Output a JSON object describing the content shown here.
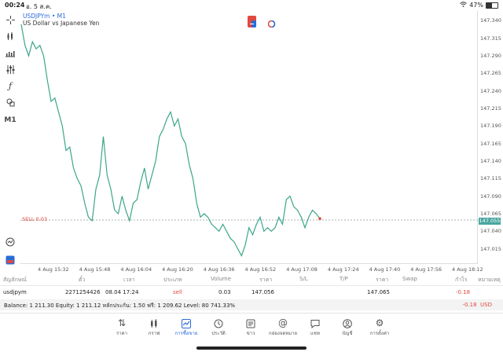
{
  "status_bar": {
    "time": "00:24",
    "date": "อ. 5 ส.ค.",
    "battery": "47%",
    "battery_level": 0.47,
    "wifi_icon": "wifi-icon"
  },
  "left_toolbar": {
    "items": [
      {
        "name": "crosshair-icon"
      },
      {
        "name": "chart-type-icon"
      },
      {
        "name": "indicators-icon"
      },
      {
        "name": "settings-sliders-icon"
      },
      {
        "name": "function-icon"
      },
      {
        "name": "objects-icon"
      }
    ],
    "timeframe": "M1"
  },
  "chart": {
    "symbol": "USDJPYm",
    "symbol_suffix": " • M1",
    "description": "US Dollar vs Japanese Yen",
    "sell_label": "SELL 0.03",
    "current_price": "147.055",
    "colors": {
      "line": "#3aa68a",
      "sell": "#e04a3f",
      "accent": "#2a6bd8",
      "price_box": "#4aa6a0"
    }
  },
  "chart_data": {
    "type": "line",
    "series": [
      {
        "values": [
          147.335,
          147.305,
          147.29,
          147.31,
          147.3,
          147.305,
          147.29,
          147.255,
          147.225,
          147.23,
          147.21,
          147.19,
          147.155,
          147.16,
          147.13,
          147.115,
          147.105,
          147.08,
          147.06,
          147.055,
          147.1,
          147.12,
          147.175,
          147.12,
          147.1,
          147.07,
          147.065,
          147.09,
          147.07,
          147.055,
          147.08,
          147.085,
          147.11,
          147.13,
          147.1,
          147.12,
          147.14,
          147.175,
          147.185,
          147.2,
          147.21,
          147.19,
          147.2,
          147.175,
          147.165,
          147.135,
          147.115,
          147.08,
          147.06,
          147.065,
          147.06,
          147.05,
          147.045,
          147.04,
          147.05,
          147.04,
          147.03,
          147.025,
          147.015,
          147.005,
          147.02,
          147.045,
          147.035,
          147.05,
          147.06,
          147.04,
          147.045,
          147.04,
          147.045,
          147.06,
          147.05,
          147.085,
          147.09,
          147.075,
          147.07,
          147.06,
          147.045,
          147.06,
          147.07,
          147.065,
          147.058
        ]
      }
    ],
    "ylim": [
      147.0,
      147.345
    ],
    "yticks": [
      "147.340",
      "147.315",
      "147.290",
      "147.265",
      "147.240",
      "147.215",
      "147.190",
      "147.165",
      "147.140",
      "147.115",
      "147.090",
      "147.065",
      "147.040",
      "147.015"
    ],
    "xticks": [
      "4 Aug 15:32",
      "4 Aug 15:48",
      "4 Aug 16:04",
      "4 Aug 16:20",
      "4 Aug 16:36",
      "4 Aug 16:52",
      "4 Aug 17:08",
      "4 Aug 17:24",
      "4 Aug 17:40",
      "4 Aug 17:56",
      "4 Aug 18:12"
    ],
    "sell_level": 147.056,
    "grid": false
  },
  "trade": {
    "headers": [
      "สัญลักษณ์",
      "ตั๋ว",
      "เวลา",
      "ประเภท",
      "Volume",
      "ราคา",
      "S/L",
      "T/P",
      "ราคา",
      "Swap",
      "กำไร",
      "หมายเหตุ"
    ],
    "row": {
      "symbol": "usdjpym",
      "ticket": "2271254426",
      "time": "08.04 17:24",
      "type": "sell",
      "volume": "0.03",
      "open_price": "147.056",
      "current_price": "147.065",
      "profit": "-0.18"
    }
  },
  "balance": {
    "text": "Balance: 1 211.30 Equity: 1 211.12 หลักประกัน: 1.50 ฟรี: 1 209.62 Level: 80 741.33%",
    "profit": "-0.18",
    "currency": "USD"
  },
  "tabs": [
    {
      "label": "ราคา",
      "icon": "quotes-icon"
    },
    {
      "label": "กราฟ",
      "icon": "charts-icon"
    },
    {
      "label": "การซื้อขาย",
      "icon": "trade-icon",
      "active": true
    },
    {
      "label": "ประวัติ",
      "icon": "history-icon"
    },
    {
      "label": "ข่าว",
      "icon": "news-icon"
    },
    {
      "label": "กล่องจดหมาย",
      "icon": "mailbox-icon"
    },
    {
      "label": "แชท",
      "icon": "chat-icon"
    },
    {
      "label": "บัญชี",
      "icon": "account-icon"
    },
    {
      "label": "การตั้งค่า",
      "icon": "settings-icon"
    }
  ]
}
